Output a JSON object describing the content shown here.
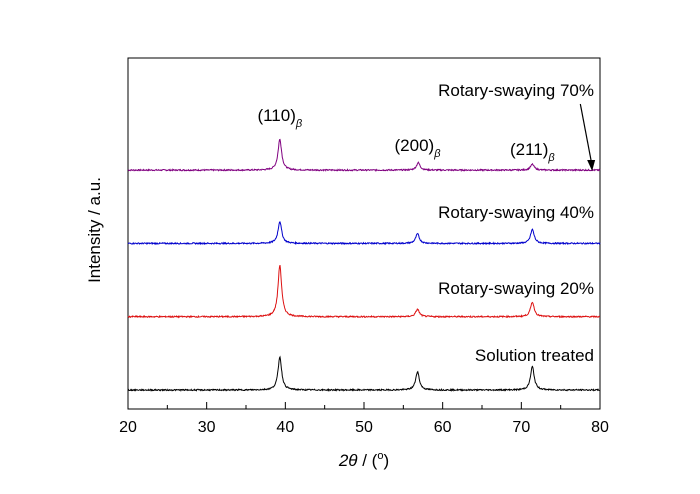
{
  "chart_data": {
    "type": "line",
    "xlabel": {
      "var": "2θ",
      "sep": " / (",
      "deg": "o",
      "close": ")"
    },
    "ylabel": "Intensity / a.u.",
    "xlim": [
      20,
      80
    ],
    "xticks": [
      20,
      30,
      40,
      50,
      60,
      70,
      80
    ],
    "yticks_shown": false,
    "legend": "none",
    "series": [
      {
        "name": "Rotary-swaying 70%",
        "color": "#800080",
        "baseline": 3.0,
        "peaks": [
          {
            "x": 39.3,
            "height": 0.42
          },
          {
            "x": 56.9,
            "height": 0.1
          },
          {
            "x": 71.4,
            "height": 0.08
          }
        ]
      },
      {
        "name": "Rotary-swaying 40%",
        "color": "#0000cc",
        "baseline": 2.0,
        "peaks": [
          {
            "x": 39.3,
            "height": 0.3
          },
          {
            "x": 56.8,
            "height": 0.13
          },
          {
            "x": 71.4,
            "height": 0.19
          }
        ]
      },
      {
        "name": "Rotary-swaying 20%",
        "color": "#dd1111",
        "baseline": 1.0,
        "peaks": [
          {
            "x": 39.3,
            "height": 0.7
          },
          {
            "x": 56.8,
            "height": 0.1
          },
          {
            "x": 71.4,
            "height": 0.2
          }
        ]
      },
      {
        "name": "Solution treated",
        "color": "#000000",
        "baseline": 0.0,
        "peaks": [
          {
            "x": 39.3,
            "height": 0.45
          },
          {
            "x": 56.8,
            "height": 0.25
          },
          {
            "x": 71.4,
            "height": 0.32
          }
        ]
      }
    ],
    "annotations": [
      {
        "main": "(110)",
        "sub": "β",
        "x": 39.3
      },
      {
        "main": "(200)",
        "sub": "β",
        "x": 56.8
      },
      {
        "main": "(211)",
        "sub": "β",
        "x": 71.4
      }
    ],
    "arrow": {
      "from": 77.5,
      "to": 79.0
    }
  }
}
